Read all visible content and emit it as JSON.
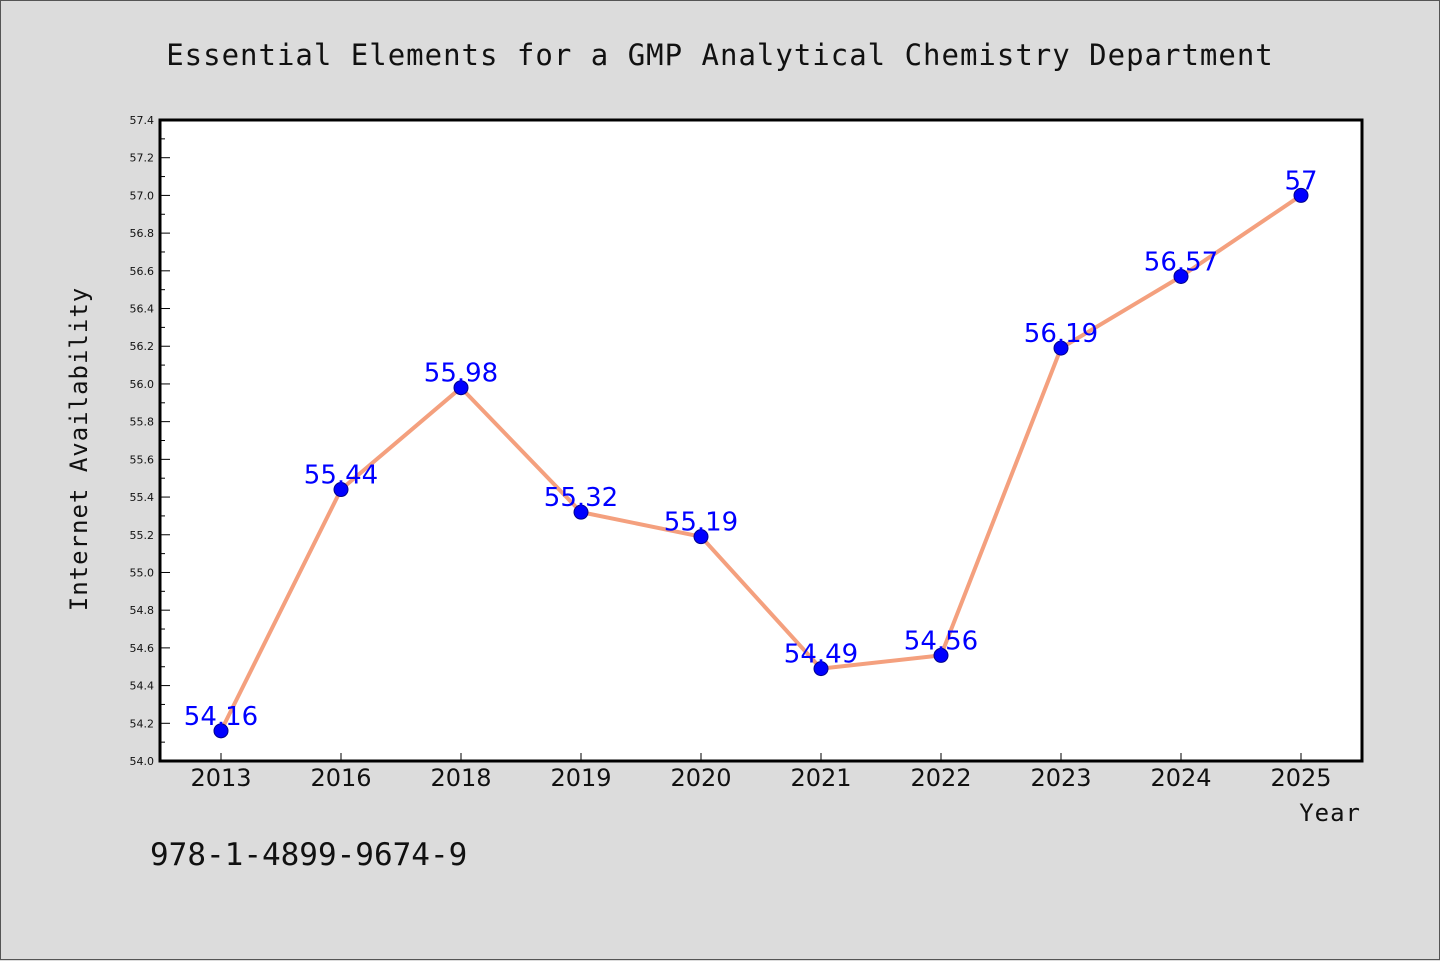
{
  "chart_data": {
    "type": "line",
    "title": "Essential Elements for a GMP Analytical Chemistry Department",
    "xlabel": "Year",
    "ylabel": "Internet Availability",
    "categories": [
      "2013",
      "2016",
      "2018",
      "2019",
      "2020",
      "2021",
      "2022",
      "2023",
      "2024",
      "2025"
    ],
    "series": [
      {
        "values": [
          54.16,
          55.44,
          55.98,
          55.32,
          55.19,
          54.49,
          54.56,
          56.19,
          56.57,
          57
        ],
        "labels": [
          "54.16",
          "55.44",
          "55.98",
          "55.32",
          "55.19",
          "54.49",
          "54.56",
          "56.19",
          "56.57",
          "57"
        ]
      }
    ],
    "ylim": [
      54.0,
      57.4
    ],
    "yticks": [
      "54.0",
      "54.2",
      "54.4",
      "54.6",
      "54.8",
      "55.0",
      "55.2",
      "55.4",
      "55.6",
      "55.8",
      "56.0",
      "56.2",
      "56.4",
      "56.6",
      "56.8",
      "57.0",
      "57.2",
      "57.4"
    ],
    "grid": false,
    "legend": "none",
    "colors": {
      "line": "#f4a07e",
      "marker": "#0000ff",
      "data_label": "#0000ff",
      "background": "#dcdcdc",
      "plot_background": "#ffffff"
    }
  },
  "footnote": "978-1-4899-9674-9"
}
